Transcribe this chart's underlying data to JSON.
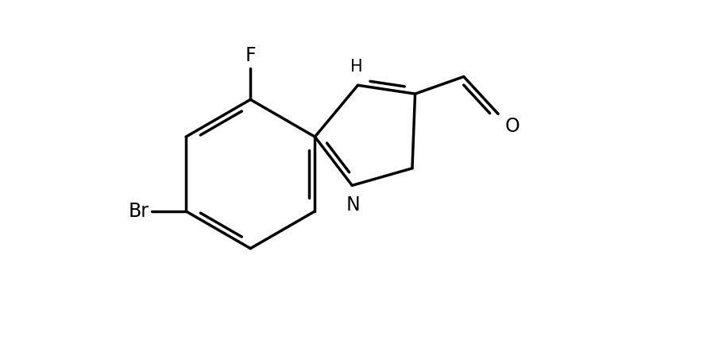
{
  "background_color": "#ffffff",
  "line_color": "#000000",
  "line_width": 2.5,
  "font_size": 17,
  "font_size_h": 15,
  "figsize": [
    8.9,
    4.38
  ],
  "dpi": 100,
  "xlim": [
    0.0,
    10.0
  ],
  "ylim": [
    0.5,
    6.5
  ]
}
